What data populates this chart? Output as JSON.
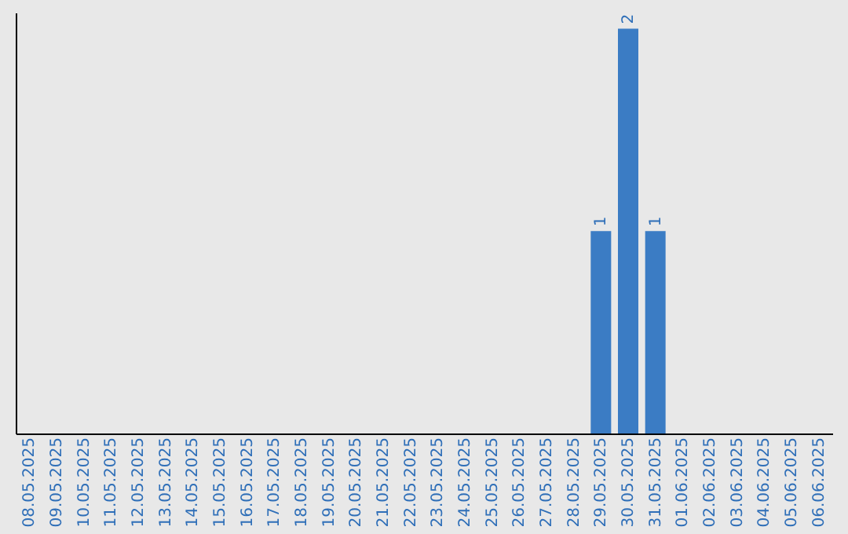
{
  "chart_data": {
    "type": "bar",
    "categories": [
      "08.05.2025",
      "09.05.2025",
      "10.05.2025",
      "11.05.2025",
      "12.05.2025",
      "13.05.2025",
      "14.05.2025",
      "15.05.2025",
      "16.05.2025",
      "17.05.2025",
      "18.05.2025",
      "19.05.2025",
      "20.05.2025",
      "21.05.2025",
      "22.05.2025",
      "23.05.2025",
      "24.05.2025",
      "25.05.2025",
      "26.05.2025",
      "27.05.2025",
      "28.05.2025",
      "29.05.2025",
      "30.05.2025",
      "31.05.2025",
      "01.06.2025",
      "02.06.2025",
      "03.06.2025",
      "04.06.2025",
      "05.06.2025",
      "06.06.2025"
    ],
    "values": [
      null,
      null,
      null,
      null,
      null,
      null,
      null,
      null,
      null,
      null,
      null,
      null,
      null,
      null,
      null,
      null,
      null,
      null,
      null,
      null,
      null,
      1,
      2,
      1,
      null,
      null,
      null,
      null,
      null,
      null
    ],
    "value_labels": [
      null,
      null,
      null,
      null,
      null,
      null,
      null,
      null,
      null,
      null,
      null,
      null,
      null,
      null,
      null,
      null,
      null,
      null,
      null,
      null,
      null,
      "1",
      "2",
      "1",
      null,
      null,
      null,
      null,
      null,
      null
    ],
    "color": "#3b7cc4",
    "ylim": [
      0,
      2.08
    ],
    "tick_labels": "x",
    "grid": false
  }
}
